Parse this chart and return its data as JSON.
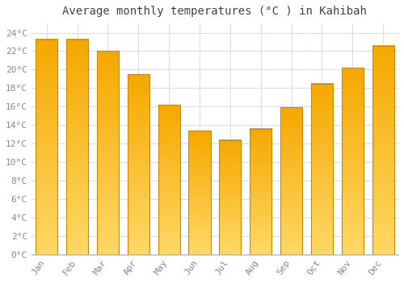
{
  "title": "Average monthly temperatures (°C ) in Kahibah",
  "months": [
    "Jan",
    "Feb",
    "Mar",
    "Apr",
    "May",
    "Jun",
    "Jul",
    "Aug",
    "Sep",
    "Oct",
    "Nov",
    "Dec"
  ],
  "values": [
    23.3,
    23.3,
    22.0,
    19.5,
    16.2,
    13.4,
    12.4,
    13.6,
    15.9,
    18.5,
    20.2,
    22.6
  ],
  "bar_color_top": "#F5A800",
  "bar_color_bottom": "#FFD966",
  "bar_edge_color": "#CC8800",
  "background_color": "#FFFFFF",
  "grid_color": "#DDDDDD",
  "ylim": [
    0,
    25
  ],
  "ytick_interval": 2,
  "title_fontsize": 10,
  "tick_fontsize": 8,
  "tick_color": "#888888",
  "font_family": "monospace"
}
